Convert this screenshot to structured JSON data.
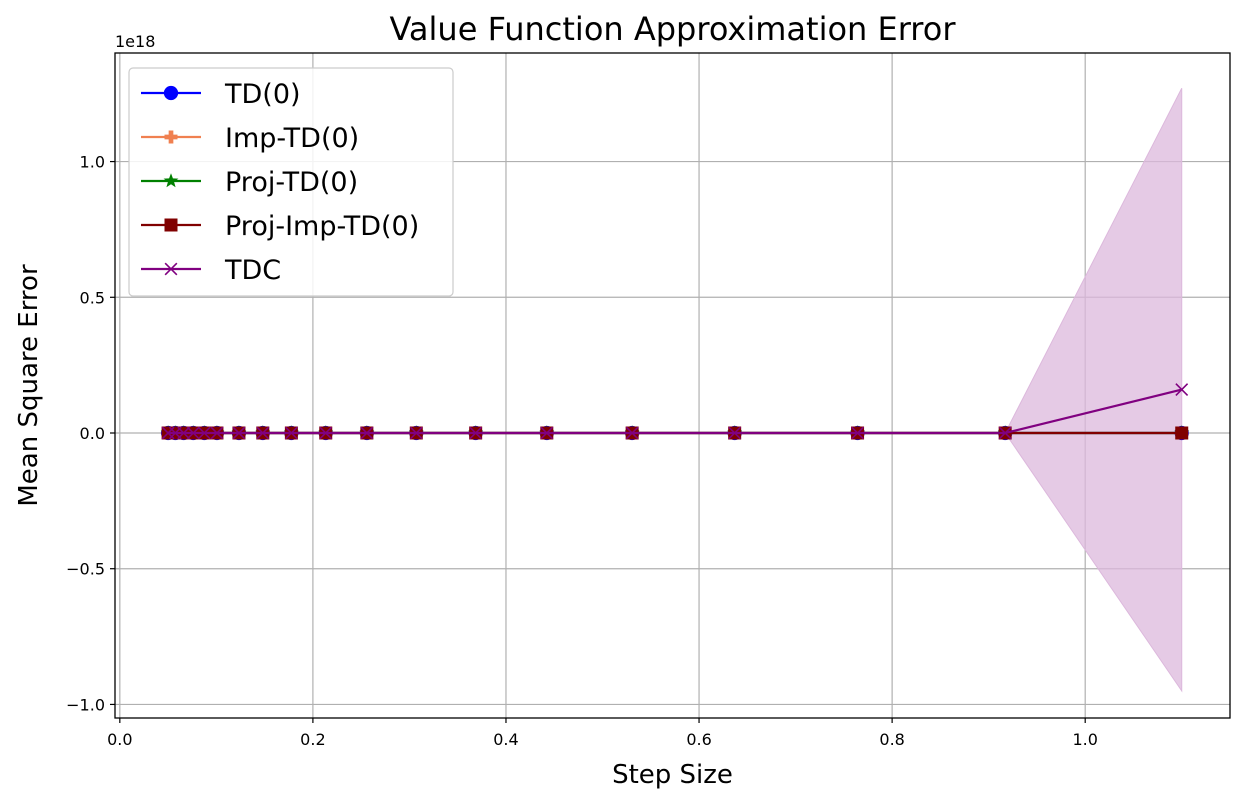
{
  "chart_data": {
    "type": "line",
    "title": "Value Function Approximation Error",
    "xlabel": "Step Size",
    "ylabel": "Mean Square Error",
    "y_scale_label": "1e18",
    "xlim": [
      -0.005,
      1.15
    ],
    "ylim": [
      -1.05,
      1.4
    ],
    "x_ticks": [
      0.0,
      0.2,
      0.4,
      0.6,
      0.8,
      1.0
    ],
    "x_tick_labels": [
      "0.0",
      "0.2",
      "0.4",
      "0.6",
      "0.8",
      "1.0"
    ],
    "y_ticks": [
      -1.0,
      -0.5,
      0.0,
      0.5,
      1.0
    ],
    "y_tick_labels": [
      "−1.0",
      "−0.5",
      "0.0",
      "0.5",
      "1.0"
    ],
    "grid": true,
    "legend_position": "top-left",
    "x": [
      0.05,
      0.0575,
      0.0661,
      0.0761,
      0.0875,
      0.1006,
      0.1234,
      0.1481,
      0.1777,
      0.2133,
      0.2559,
      0.3071,
      0.3686,
      0.4423,
      0.5307,
      0.6369,
      0.7642,
      0.9171,
      1.1
    ],
    "series": [
      {
        "name": "TD(0)",
        "color": "#0000ff",
        "marker": "circle",
        "values": [
          0,
          0,
          0,
          0,
          0,
          0,
          0,
          0,
          0,
          0,
          0,
          0,
          0,
          0,
          0,
          0,
          0,
          0,
          0
        ]
      },
      {
        "name": "Imp-TD(0)",
        "color": "#f08050",
        "marker": "plus",
        "values": [
          0,
          0,
          0,
          0,
          0,
          0,
          0,
          0,
          0,
          0,
          0,
          0,
          0,
          0,
          0,
          0,
          0,
          0,
          0
        ]
      },
      {
        "name": "Proj-TD(0)",
        "color": "#008000",
        "marker": "star",
        "values": [
          0,
          0,
          0,
          0,
          0,
          0,
          0,
          0,
          0,
          0,
          0,
          0,
          0,
          0,
          0,
          0,
          0,
          0,
          0
        ]
      },
      {
        "name": "Proj-Imp-TD(0)",
        "color": "#800000",
        "marker": "square",
        "values": [
          0,
          0,
          0,
          0,
          0,
          0,
          0,
          0,
          0,
          0,
          0,
          0,
          0,
          0,
          0,
          0,
          0,
          0,
          0
        ]
      },
      {
        "name": "TDC",
        "color": "#800080",
        "marker": "x",
        "values": [
          0,
          0,
          0,
          0,
          0,
          0,
          0,
          0,
          0,
          0,
          0,
          0,
          0,
          0,
          0,
          0,
          0,
          0,
          0.16
        ],
        "band_upper": [
          0,
          0,
          0,
          0,
          0,
          0,
          0,
          0,
          0,
          0,
          0,
          0,
          0,
          0,
          0,
          0,
          0,
          0,
          1.27
        ],
        "band_lower": [
          0,
          0,
          0,
          0,
          0,
          0,
          0,
          0,
          0,
          0,
          0,
          0,
          0,
          0,
          0,
          0,
          0,
          0,
          -0.95
        ],
        "band_color": "#dcb8dc"
      }
    ]
  }
}
